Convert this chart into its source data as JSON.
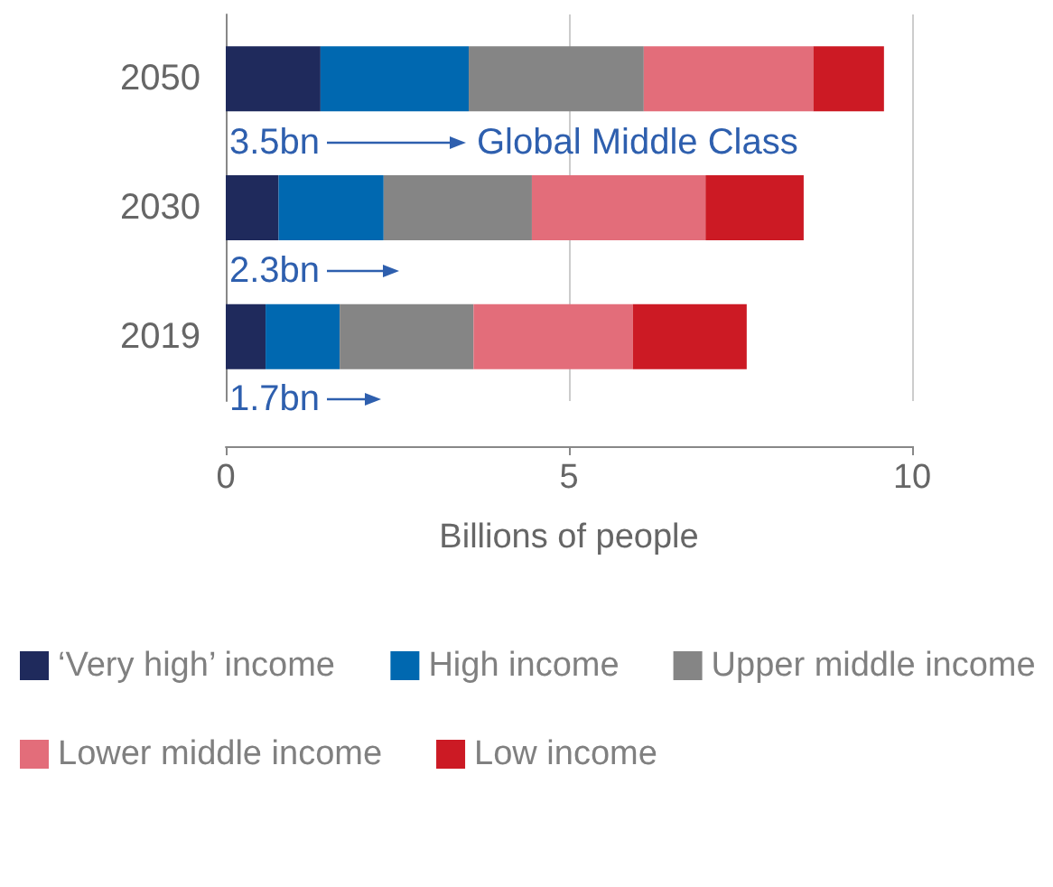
{
  "chart_data": {
    "type": "bar",
    "orientation": "horizontal",
    "stacked": true,
    "categories": [
      "2050",
      "2030",
      "2019"
    ],
    "series": [
      {
        "name": "‘Very high’ income",
        "color": "#1f2a5c",
        "values": [
          1.38,
          0.77,
          0.58
        ]
      },
      {
        "name": "High income",
        "color": "#0068b0",
        "values": [
          2.16,
          1.53,
          1.08
        ]
      },
      {
        "name": "Upper middle income",
        "color": "#858585",
        "values": [
          2.55,
          2.16,
          1.95
        ]
      },
      {
        "name": "Lower middle income",
        "color": "#e36d7a",
        "values": [
          2.47,
          2.53,
          2.32
        ]
      },
      {
        "name": "Low income",
        "color": "#cc1a24",
        "values": [
          1.03,
          1.43,
          1.66
        ]
      }
    ],
    "xlabel": "Billions of people",
    "xlim": [
      0,
      10
    ],
    "xticks": [
      0,
      5,
      10
    ],
    "grid": "x",
    "legend": "bottom",
    "annotations": [
      "3.5bn",
      "2.3bn",
      "1.7bn",
      "Global Middle Class"
    ]
  }
}
